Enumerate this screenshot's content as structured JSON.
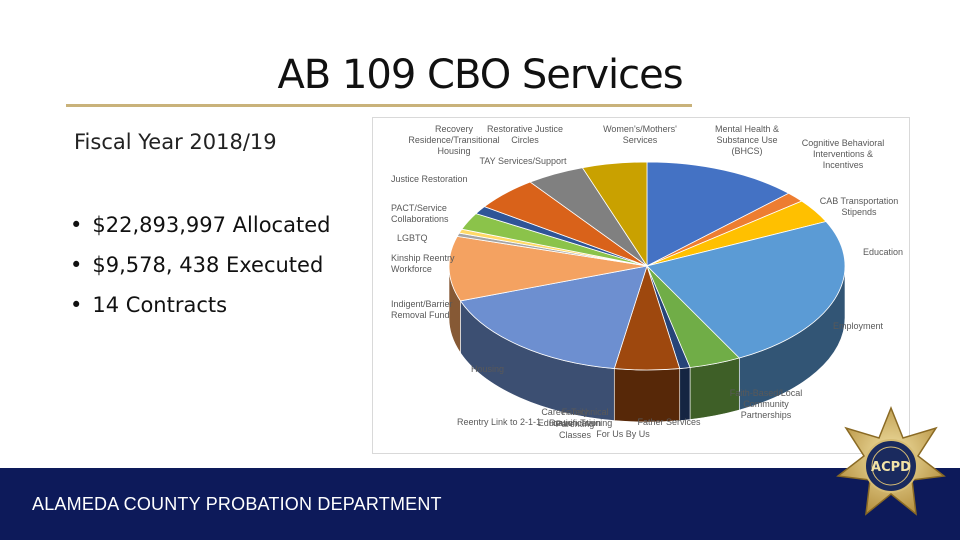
{
  "title": "AB 109 CBO Services",
  "fiscal_year": "Fiscal Year 2018/19",
  "bullets": [
    "$22,893,997 Allocated",
    "$9,578, 438 Executed",
    "14 Contracts"
  ],
  "footer": "ALAMEDA COUNTY PROBATION DEPARTMENT",
  "badge_text": "ACPD",
  "chart_data": {
    "type": "pie",
    "style": "3d",
    "title": "",
    "slices": [
      {
        "name": "Cognitive Behavioral Interventions & Incentives",
        "value": 12.0,
        "color": "#4472c4"
      },
      {
        "name": "CAB Transportation Stipends",
        "value": 1.5,
        "color": "#ed7d31"
      },
      {
        "name": "Education",
        "value": 3.5,
        "color": "#ffc000"
      },
      {
        "name": "Employment",
        "value": 23.0,
        "color": "#5b9bd5"
      },
      {
        "name": "Faith-Based/Local Community Partnerships",
        "value": 4.0,
        "color": "#70ad47"
      },
      {
        "name": "Father Services",
        "value": 0.8,
        "color": "#264478"
      },
      {
        "name": "For Us By Us",
        "value": 5.0,
        "color": "#9e480e"
      },
      {
        "name": "Housing",
        "value": 16.0,
        "color": "#6d8fd0"
      },
      {
        "name": "Indigent/Barrier Removal Fund",
        "value": 9.5,
        "color": "#f4a261"
      },
      {
        "name": "Kinship Reentry Workforce",
        "value": 0.5,
        "color": "#a5a5a5"
      },
      {
        "name": "LGBTQ",
        "value": 0.6,
        "color": "#ffd966"
      },
      {
        "name": "PACT/Service Collaborations",
        "value": 2.5,
        "color": "#8bc34a"
      },
      {
        "name": "Justice Restoration",
        "value": 1.2,
        "color": "#2f5597"
      },
      {
        "name": "TAY Services/Support",
        "value": 5.0,
        "color": "#d9621a"
      },
      {
        "name": "Recovery Residence/Transitional Housing",
        "value": 4.5,
        "color": "#808080"
      },
      {
        "name": "Women's/Mothers' Services",
        "value": 5.0,
        "color": "#c9a100"
      }
    ],
    "labels": {
      "recovery": "Recovery\nResidence/Transitional\nHousing",
      "restorative": "Restorative Justice\nCircles",
      "tay": "TAY Services/Support",
      "women": "Women's/Mothers'\nServices",
      "mental": "Mental Health &\nSubstance Use\n(BHCS)",
      "cognitive": "Cognitive Behavioral\nInterventions &\nIncentives",
      "cab": "CAB Transportation\nStipends",
      "education": "Education",
      "employment": "Employment",
      "justice": "Justice Restoration",
      "pact": "PACT/Service\nCollaborations",
      "lgbtq": "LGBTQ",
      "kinship": "Kinship Reentry\nWorkforce",
      "indigent": "Indigent/Barrier\nRemoval Fund",
      "housing": "Housing",
      "faith": "Faith-Based/Local\nCommunity\nPartnerships",
      "father": "Father Services",
      "reentry": "Reentry Link to 2-1-1",
      "family": "Family Reunification",
      "career": "Career Technical\nEducation Training",
      "parenting": "Parenting Classes",
      "forus": "For Us By Us"
    }
  }
}
